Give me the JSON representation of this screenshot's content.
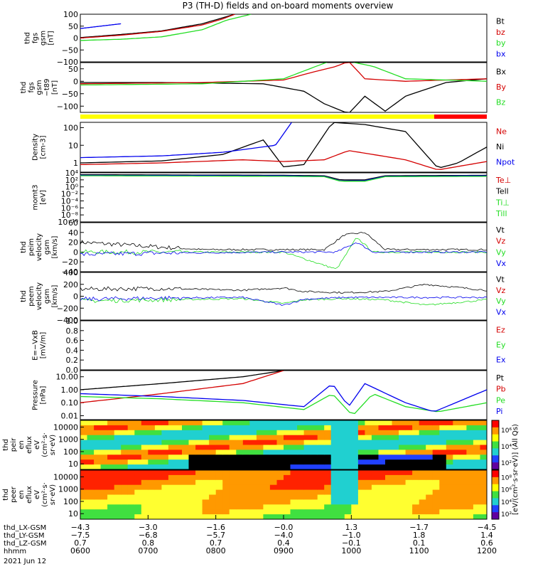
{
  "title": "P3 (TH-D) fields and on-board moments overview",
  "colors": {
    "black": "#000000",
    "red": "#d40000",
    "green": "#22dd22",
    "blue": "#0000ee",
    "yellow": "#ffff00",
    "bar_red": "#ff0000"
  },
  "chart_data": [
    {
      "type": "line",
      "name": "fgs-gsm",
      "ylabel": [
        "thd",
        "fgs",
        "gsm",
        "[nT]"
      ],
      "yticks": [
        "100",
        "50",
        "0",
        "−50",
        "−100"
      ],
      "yticks_v": [
        100,
        50,
        0,
        -50,
        -100
      ],
      "ylim": [
        -100,
        100
      ],
      "legend": [
        "Bt",
        "bz",
        "by",
        "bx"
      ],
      "legend_colors": [
        "#000000",
        "#d40000",
        "#22dd22",
        "#0000ee"
      ],
      "series": [
        {
          "color": "#000000",
          "x": [
            0,
            0.1,
            0.2,
            0.3,
            0.35,
            0.38
          ],
          "y": [
            2,
            15,
            30,
            60,
            85,
            100
          ]
        },
        {
          "color": "#d40000",
          "x": [
            0,
            0.1,
            0.2,
            0.3,
            0.35,
            0.38
          ],
          "y": [
            0,
            12,
            28,
            55,
            80,
            100
          ]
        },
        {
          "color": "#22dd22",
          "x": [
            0,
            0.1,
            0.2,
            0.3,
            0.36,
            0.42
          ],
          "y": [
            -10,
            -5,
            5,
            35,
            75,
            100
          ]
        },
        {
          "color": "#0000ee",
          "x": [
            0,
            0.05,
            0.1
          ],
          "y": [
            40,
            50,
            60
          ]
        }
      ]
    },
    {
      "type": "line",
      "name": "fgs-gsm-t89",
      "ylabel": [
        "thd",
        "fgs",
        "gsm",
        "−t89",
        "[nT]"
      ],
      "yticks": [
        "50",
        "0",
        "−50",
        "−100"
      ],
      "yticks_v": [
        50,
        0,
        -50,
        -100
      ],
      "ylim": [
        -125,
        75
      ],
      "legend": [
        "Bx",
        "By",
        "Bz"
      ],
      "legend_colors": [
        "#000000",
        "#d40000",
        "#22dd22"
      ],
      "series": [
        {
          "color": "#000000",
          "x": [
            0,
            0.2,
            0.45,
            0.55,
            0.6,
            0.66,
            0.7,
            0.75,
            0.8,
            0.9,
            1
          ],
          "y": [
            -5,
            -5,
            -10,
            -40,
            -90,
            -130,
            -60,
            -120,
            -60,
            -5,
            10
          ]
        },
        {
          "color": "#d40000",
          "x": [
            0,
            0.3,
            0.5,
            0.58,
            0.63,
            0.66,
            0.7,
            0.8,
            1
          ],
          "y": [
            -10,
            -5,
            5,
            40,
            60,
            80,
            10,
            0,
            10
          ]
        },
        {
          "color": "#22dd22",
          "x": [
            0,
            0.3,
            0.5,
            0.58,
            0.63,
            0.66,
            0.72,
            0.8,
            1
          ],
          "y": [
            -15,
            -10,
            10,
            60,
            90,
            80,
            60,
            10,
            0
          ]
        }
      ]
    },
    {
      "type": "line",
      "name": "density",
      "ylabel": [
        "Density",
        "[cm-3]"
      ],
      "log": true,
      "yticks": [
        "100",
        "10",
        "1"
      ],
      "yticks_v": [
        100,
        10,
        1
      ],
      "ylim": [
        0.3,
        200
      ],
      "legend": [
        "Ne",
        "Ni",
        "Npot"
      ],
      "legend_colors": [
        "#d40000",
        "#000000",
        "#0000ee"
      ],
      "series": [
        {
          "color": "#000000",
          "x": [
            0,
            0.2,
            0.35,
            0.45,
            0.5,
            0.55,
            0.62,
            0.7,
            0.8,
            0.88,
            0.93,
            1
          ],
          "y": [
            1,
            1.3,
            3,
            20,
            0.6,
            0.8,
            200,
            150,
            60,
            0.5,
            1,
            8
          ]
        },
        {
          "color": "#d40000",
          "x": [
            0,
            0.2,
            0.4,
            0.5,
            0.6,
            0.66,
            0.72,
            0.8,
            0.88,
            1
          ],
          "y": [
            0.8,
            1,
            1.5,
            1.2,
            1.5,
            5,
            3,
            1.5,
            0.4,
            1.2
          ]
        },
        {
          "color": "#0000ee",
          "x": [
            0,
            0.2,
            0.35,
            0.48,
            0.52
          ],
          "y": [
            2,
            2.5,
            4,
            10,
            200
          ]
        }
      ]
    },
    {
      "type": "line",
      "name": "mom-temp",
      "ylabel": [
        "momt3",
        "[eV]"
      ],
      "log": true,
      "yticks": [
        "10⁴",
        "10²",
        "10⁰",
        "10⁻²",
        "10⁻⁴",
        "10⁻⁶",
        "10⁻⁸",
        "10⁻¹⁰"
      ],
      "yticks_v": [
        10000,
        100,
        1,
        0.01,
        0.0001,
        1e-06,
        1e-08,
        1e-10
      ],
      "ylim": [
        1e-10,
        10000
      ],
      "legend": [
        "Te⊥",
        "Tell",
        "Ti⊥",
        "Till"
      ],
      "legend_colors": [
        "#d40000",
        "#000000",
        "#22dd22",
        "#22dd22"
      ],
      "series": [
        {
          "color": "#000000",
          "x": [
            0,
            0.5,
            0.6,
            0.64,
            0.7,
            0.75,
            1
          ],
          "y": [
            3000,
            2000,
            1500,
            100,
            100,
            1500,
            2000
          ]
        },
        {
          "color": "#0000ee",
          "x": [
            0,
            0.5,
            0.6,
            0.64,
            0.7,
            0.75,
            1
          ],
          "y": [
            2000,
            1500,
            1000,
            50,
            60,
            1000,
            1500
          ]
        },
        {
          "color": "#22dd22",
          "x": [
            0,
            0.5,
            0.6,
            0.64,
            0.7,
            0.75,
            1
          ],
          "y": [
            1500,
            1000,
            800,
            40,
            40,
            800,
            1000
          ]
        }
      ]
    },
    {
      "type": "line",
      "name": "peim-velocity",
      "ylabel": [
        "thd",
        "peim",
        "velocity",
        "gsm",
        "[km/s]"
      ],
      "yticks": [
        "60",
        "40",
        "20",
        "0",
        "−20",
        "−40"
      ],
      "yticks_v": [
        60,
        40,
        20,
        0,
        -20,
        -40
      ],
      "ylim": [
        -40,
        60
      ],
      "legend": [
        "Vt",
        "Vz",
        "Vy",
        "Vx"
      ],
      "legend_colors": [
        "#000000",
        "#d40000",
        "#22dd22",
        "#0000ee"
      ],
      "series": [
        {
          "color": "#000000",
          "x": [
            0,
            0.1,
            0.2,
            0.3,
            0.5,
            0.6,
            0.65,
            0.7,
            0.75,
            0.8,
            1
          ],
          "y": [
            20,
            15,
            10,
            5,
            5,
            5,
            35,
            40,
            5,
            5,
            5
          ]
        },
        {
          "color": "#22dd22",
          "x": [
            0,
            0.2,
            0.5,
            0.63,
            0.65,
            0.68,
            0.72,
            1
          ],
          "y": [
            0,
            0,
            0,
            -35,
            -10,
            30,
            0,
            0
          ]
        },
        {
          "color": "#0000ee",
          "x": [
            0,
            0.2,
            0.5,
            0.63,
            0.68,
            0.72,
            1
          ],
          "y": [
            -5,
            -2,
            0,
            0,
            20,
            0,
            0
          ]
        }
      ]
    },
    {
      "type": "line",
      "name": "peem-velocity",
      "ylabel": [
        "thd",
        "peem",
        "velocity",
        "gsm",
        "[km/s]"
      ],
      "yticks": [
        "400",
        "200",
        "0",
        "−200",
        "−400"
      ],
      "yticks_v": [
        400,
        200,
        0,
        -200,
        -400
      ],
      "ylim": [
        -400,
        400
      ],
      "legend": [
        "Vt",
        "Vz",
        "Vy",
        "Vx"
      ],
      "legend_colors": [
        "#000000",
        "#d40000",
        "#22dd22",
        "#0000ee"
      ],
      "series": [
        {
          "color": "#000000",
          "x": [
            0,
            0.2,
            0.4,
            0.5,
            0.55,
            0.65,
            0.75,
            0.85,
            1
          ],
          "y": [
            120,
            130,
            100,
            140,
            80,
            60,
            80,
            200,
            100
          ]
        },
        {
          "color": "#22dd22",
          "x": [
            0,
            0.2,
            0.4,
            0.5,
            0.55,
            0.65,
            0.75,
            0.85,
            1
          ],
          "y": [
            -80,
            -60,
            -40,
            -120,
            -60,
            -40,
            -60,
            -150,
            -60
          ]
        },
        {
          "color": "#0000ee",
          "x": [
            0,
            0.2,
            0.4,
            0.5,
            0.55,
            0.65,
            1
          ],
          "y": [
            -50,
            -30,
            -20,
            -150,
            -50,
            -20,
            -20
          ]
        }
      ]
    },
    {
      "type": "line",
      "name": "efield",
      "ylabel": [
        "E=−VxB",
        "[mV/m]"
      ],
      "yticks": [
        "1.0",
        "0.8",
        "0.6",
        "0.4",
        "0.2",
        "0.0"
      ],
      "yticks_v": [
        1,
        0.8,
        0.6,
        0.4,
        0.2,
        0
      ],
      "ylim": [
        0,
        1
      ],
      "legend": [
        "Ez",
        "Ey",
        "Ex"
      ],
      "legend_colors": [
        "#d40000",
        "#22dd22",
        "#0000ee"
      ],
      "series": []
    },
    {
      "type": "line",
      "name": "pressure",
      "ylabel": [
        "Pressure",
        "[nPa]"
      ],
      "log": true,
      "yticks": [
        "10.00",
        "1.00",
        "0.10",
        "0.01"
      ],
      "yticks_v": [
        10,
        1,
        0.1,
        0.01
      ],
      "ylim": [
        0.005,
        30
      ],
      "legend": [
        "Pt",
        "Pb",
        "Pe",
        "Pi"
      ],
      "legend_colors": [
        "#000000",
        "#d40000",
        "#22dd22",
        "#0000ee"
      ],
      "series": [
        {
          "color": "#000000",
          "x": [
            0,
            0.2,
            0.4,
            0.5
          ],
          "y": [
            1,
            3,
            10,
            30
          ]
        },
        {
          "color": "#d40000",
          "x": [
            0,
            0.2,
            0.4,
            0.5
          ],
          "y": [
            0.1,
            0.5,
            3,
            30
          ]
        },
        {
          "color": "#22dd22",
          "x": [
            0,
            0.2,
            0.4,
            0.55,
            0.62,
            0.67,
            0.72,
            0.8,
            0.88,
            1
          ],
          "y": [
            0.3,
            0.2,
            0.1,
            0.03,
            0.5,
            0.01,
            0.5,
            0.05,
            0.02,
            0.1
          ]
        },
        {
          "color": "#0000ee",
          "x": [
            0,
            0.2,
            0.4,
            0.55,
            0.62,
            0.66,
            0.7,
            0.8,
            0.87,
            1
          ],
          "y": [
            0.5,
            0.3,
            0.15,
            0.05,
            3,
            0.05,
            3,
            0.1,
            0.02,
            1
          ]
        }
      ]
    },
    {
      "type": "heatmap",
      "name": "peir-eflux",
      "ylabel": [
        "thd",
        "peir",
        "en",
        "eflux",
        "eV",
        "(cm²·s·",
        "sr·eV)"
      ],
      "yticks": [
        "10000",
        "1000",
        "100",
        "10"
      ],
      "colorbar_ticks": [
        "10⁶",
        "10⁴",
        "10²"
      ]
    },
    {
      "type": "heatmap",
      "name": "peer-eflux",
      "ylabel": [
        "thd",
        "peer",
        "en",
        "eflux",
        "eV",
        "(cm²·s·",
        "sr·eV)"
      ],
      "yticks": [
        "10000",
        "1000",
        "100",
        "10"
      ],
      "colorbar_ticks": [
        "10⁸",
        "10⁶",
        "10⁴",
        "10²"
      ]
    }
  ],
  "colorbar_label": "[eV/(cm²·s·sr·eV)] (All Qs)",
  "xaxis": {
    "rows": [
      {
        "label": "thd_LX-GSM",
        "vals": [
          "−4.3",
          "−3.0",
          "−1.6",
          "−0.0",
          "1.3",
          "−1.7",
          "−4.5"
        ]
      },
      {
        "label": "thd_LY-GSM",
        "vals": [
          "−7.5",
          "−6.8",
          "−5.7",
          "−4.0",
          "−1.0",
          "1.8",
          "1.4"
        ]
      },
      {
        "label": "thd_LZ-GSM",
        "vals": [
          "0.7",
          "0.8",
          "0.7",
          "0.4",
          "−0.1",
          "0.1",
          "0.6"
        ]
      },
      {
        "label": "hhmm",
        "vals": [
          "0600",
          "0700",
          "0800",
          "0900",
          "1000",
          "1100",
          "1200"
        ]
      }
    ],
    "date": "2021 Jun 12"
  }
}
